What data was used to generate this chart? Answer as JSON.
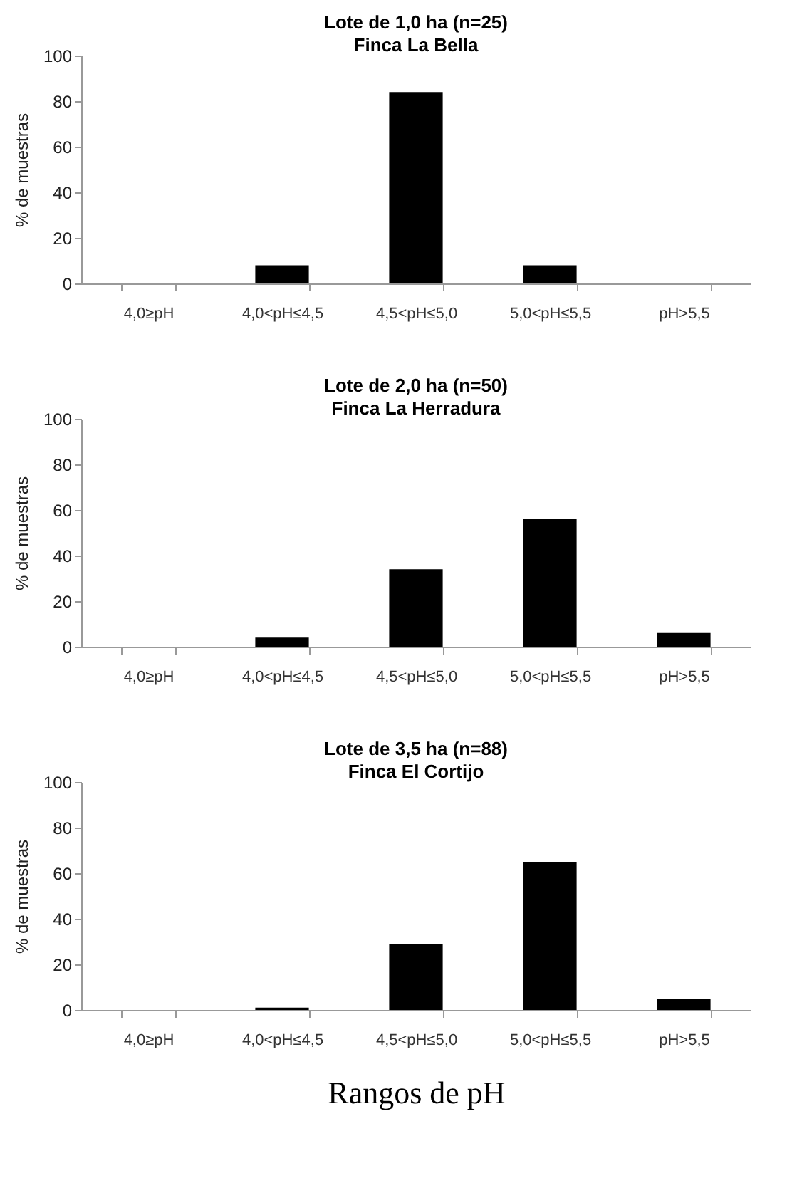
{
  "chart_data": [
    {
      "type": "bar",
      "title": "Lote de 1,0 ha (n=25)",
      "subtitle": "Finca La Bella",
      "ylabel": "% de muestras",
      "categories": [
        "4,0≥pH",
        "4,0<pH≤4,5",
        "4,5<pH≤5,0",
        "5,0<pH≤5,5",
        "pH>5,5"
      ],
      "values": [
        0,
        8,
        84,
        8,
        0
      ],
      "color": "#000000",
      "ylim": [
        0,
        100
      ],
      "yticks": [
        0,
        20,
        40,
        60,
        80,
        100
      ]
    },
    {
      "type": "bar",
      "title": "Lote de 2,0 ha (n=50)",
      "subtitle": "Finca La Herradura",
      "ylabel": "% de muestras",
      "categories": [
        "4,0≥pH",
        "4,0<pH≤4,5",
        "4,5<pH≤5,0",
        "5,0<pH≤5,5",
        "pH>5,5"
      ],
      "values": [
        0,
        4,
        34,
        56,
        6
      ],
      "color": "#000000",
      "ylim": [
        0,
        100
      ],
      "yticks": [
        0,
        20,
        40,
        60,
        80,
        100
      ]
    },
    {
      "type": "bar",
      "title": "Lote de 3,5 ha (n=88)",
      "subtitle": "Finca El Cortijo",
      "ylabel": "% de muestras",
      "xlabel": "Rangos de pH",
      "categories": [
        "4,0≥pH",
        "4,0<pH≤4,5",
        "4,5<pH≤5,0",
        "5,0<pH≤5,5",
        "pH>5,5"
      ],
      "values": [
        0,
        1,
        29,
        65,
        5
      ],
      "color": "#000000",
      "ylim": [
        0,
        100
      ],
      "yticks": [
        0,
        20,
        40,
        60,
        80,
        100
      ]
    }
  ]
}
